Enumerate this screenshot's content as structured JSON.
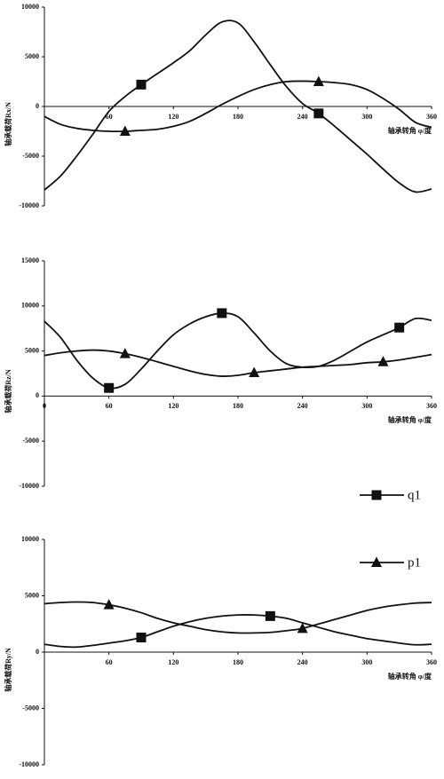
{
  "chart_data": [
    {
      "type": "line",
      "ylabel": "轴承载荷Rx/N",
      "xlabel": "轴承转角 φ/度",
      "x": [
        0,
        15,
        30,
        45,
        60,
        75,
        90,
        105,
        120,
        135,
        150,
        165,
        180,
        195,
        210,
        225,
        240,
        255,
        270,
        285,
        300,
        315,
        330,
        345,
        360
      ],
      "xlim": [
        0,
        360
      ],
      "xticks": [
        60,
        120,
        180,
        240,
        300,
        360
      ],
      "ylim": [
        -10000,
        10000
      ],
      "yticks": [
        -10000,
        -5000,
        0,
        5000,
        10000
      ],
      "series": [
        {
          "marker": "square",
          "marker_at": [
            6,
            17
          ],
          "color": "#111111",
          "values": [
            -8400,
            -7000,
            -5000,
            -2800,
            -500,
            1000,
            2200,
            3300,
            4400,
            5600,
            7200,
            8500,
            8400,
            6500,
            4200,
            2000,
            300,
            -700,
            -2000,
            -3400,
            -4800,
            -6300,
            -7700,
            -8600,
            -8300
          ]
        },
        {
          "marker": "triangle",
          "marker_at": [
            5,
            17
          ],
          "color": "#111111",
          "values": [
            -1000,
            -1800,
            -2200,
            -2400,
            -2500,
            -2500,
            -2400,
            -2300,
            -2000,
            -1500,
            -700,
            200,
            1000,
            1700,
            2200,
            2500,
            2550,
            2500,
            2400,
            2200,
            1700,
            800,
            -300,
            -1600,
            -2100
          ]
        }
      ]
    },
    {
      "type": "line",
      "ylabel": "轴承载荷Rz/N",
      "xlabel": "轴承转角 φ/度",
      "x": [
        0,
        15,
        30,
        45,
        60,
        75,
        90,
        105,
        120,
        135,
        150,
        165,
        180,
        195,
        210,
        225,
        240,
        255,
        270,
        285,
        300,
        315,
        330,
        345,
        360
      ],
      "xlim": [
        0,
        360
      ],
      "xticks": [
        0,
        60,
        120,
        180,
        240,
        300,
        360
      ],
      "ylim": [
        -10000,
        15000
      ],
      "yticks": [
        -10000,
        -5000,
        0,
        5000,
        10000,
        15000
      ],
      "series": [
        {
          "name": "q1",
          "marker": "square",
          "marker_at": [
            4,
            11,
            22
          ],
          "color": "#111111",
          "values": [
            8300,
            6500,
            4000,
            2000,
            900,
            1300,
            3000,
            5000,
            6800,
            8000,
            8800,
            9200,
            8800,
            7000,
            5000,
            3600,
            3200,
            3300,
            4000,
            5000,
            6000,
            6800,
            7600,
            8600,
            8400
          ]
        },
        {
          "name": "p1",
          "marker": "triangle",
          "marker_at": [
            5,
            13,
            21
          ],
          "color": "#111111",
          "values": [
            4500,
            4800,
            5000,
            5100,
            5000,
            4700,
            4300,
            3800,
            3300,
            2800,
            2400,
            2200,
            2300,
            2600,
            2800,
            3000,
            3200,
            3300,
            3400,
            3500,
            3700,
            3800,
            4000,
            4300,
            4600
          ]
        }
      ]
    },
    {
      "type": "line",
      "ylabel": "轴承载荷Ry/N",
      "xlabel": "轴承转角 φ/度",
      "x": [
        0,
        15,
        30,
        45,
        60,
        75,
        90,
        105,
        120,
        135,
        150,
        165,
        180,
        195,
        210,
        225,
        240,
        255,
        270,
        285,
        300,
        315,
        330,
        345,
        360
      ],
      "xlim": [
        0,
        360
      ],
      "xticks": [
        60,
        120,
        180,
        240,
        300,
        360
      ],
      "ylim": [
        -10000,
        10000
      ],
      "yticks": [
        -10000,
        -5000,
        0,
        5000,
        10000
      ],
      "series": [
        {
          "marker": "square",
          "marker_at": [
            6,
            14
          ],
          "color": "#111111",
          "values": [
            700,
            500,
            450,
            600,
            800,
            1000,
            1300,
            1800,
            2300,
            2700,
            3000,
            3200,
            3300,
            3300,
            3200,
            3000,
            2600,
            2200,
            1800,
            1500,
            1200,
            1000,
            800,
            650,
            700
          ]
        },
        {
          "marker": "triangle",
          "marker_at": [
            4,
            16
          ],
          "color": "#111111",
          "values": [
            4300,
            4400,
            4450,
            4400,
            4200,
            3900,
            3500,
            3000,
            2600,
            2300,
            2000,
            1800,
            1700,
            1700,
            1750,
            1900,
            2100,
            2500,
            2900,
            3300,
            3700,
            4000,
            4200,
            4350,
            4400
          ]
        }
      ]
    }
  ]
}
